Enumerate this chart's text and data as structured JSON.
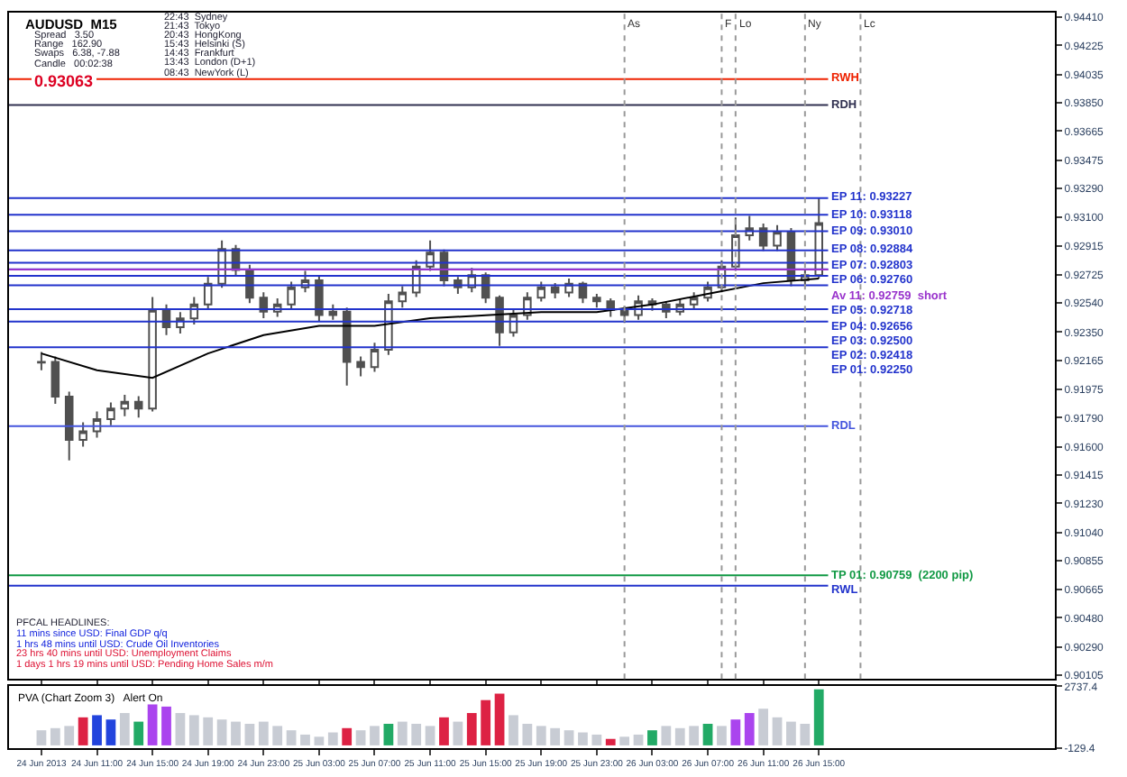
{
  "chart_data": [
    {
      "type": "candlestick",
      "title": "AUDUSD  M15",
      "color": "#505050",
      "x": [
        "2013-06-24T07:00",
        "2013-06-24T08:00",
        "2013-06-24T09:00",
        "2013-06-24T10:00",
        "2013-06-24T11:00",
        "2013-06-24T12:00",
        "2013-06-24T13:00",
        "2013-06-24T14:00",
        "2013-06-24T15:00",
        "2013-06-24T16:00",
        "2013-06-24T17:00",
        "2013-06-24T18:00",
        "2013-06-24T19:00",
        "2013-06-24T20:00",
        "2013-06-24T21:00",
        "2013-06-24T22:00",
        "2013-06-24T23:00",
        "2013-06-25T00:00",
        "2013-06-25T01:00",
        "2013-06-25T02:00",
        "2013-06-25T03:00",
        "2013-06-25T04:00",
        "2013-06-25T05:00",
        "2013-06-25T06:00",
        "2013-06-25T07:00",
        "2013-06-25T08:00",
        "2013-06-25T09:00",
        "2013-06-25T10:00",
        "2013-06-25T11:00",
        "2013-06-25T12:00",
        "2013-06-25T13:00",
        "2013-06-25T14:00",
        "2013-06-25T15:00",
        "2013-06-25T16:00",
        "2013-06-25T17:00",
        "2013-06-25T18:00",
        "2013-06-25T19:00",
        "2013-06-25T20:00",
        "2013-06-25T21:00",
        "2013-06-25T22:00",
        "2013-06-25T23:00",
        "2013-06-26T00:00",
        "2013-06-26T01:00",
        "2013-06-26T02:00",
        "2013-06-26T03:00",
        "2013-06-26T04:00",
        "2013-06-26T05:00",
        "2013-06-26T06:00",
        "2013-06-26T07:00",
        "2013-06-26T08:00",
        "2013-06-26T09:00",
        "2013-06-26T10:00",
        "2013-06-26T11:00",
        "2013-06-26T12:00",
        "2013-06-26T13:00",
        "2013-06-26T14:00",
        "2013-06-26T15:00"
      ],
      "ohlc": [
        [
          0.9215,
          0.9222,
          0.921,
          0.92155
        ],
        [
          0.92155,
          0.9219,
          0.9188,
          0.91928
        ],
        [
          0.91928,
          0.9196,
          0.9151,
          0.91644
        ],
        [
          0.91644,
          0.9176,
          0.916,
          0.91701
        ],
        [
          0.91701,
          0.9183,
          0.9166,
          0.9178
        ],
        [
          0.9178,
          0.9189,
          0.9174,
          0.91849
        ],
        [
          0.91849,
          0.9194,
          0.918,
          0.91894
        ],
        [
          0.91894,
          0.9193,
          0.9179,
          0.91849
        ],
        [
          0.91849,
          0.9258,
          0.9183,
          0.92496
        ],
        [
          0.92496,
          0.9253,
          0.9233,
          0.92382
        ],
        [
          0.92382,
          0.9248,
          0.9234,
          0.92439
        ],
        [
          0.92439,
          0.9258,
          0.924,
          0.9253
        ],
        [
          0.9253,
          0.9271,
          0.925,
          0.92666
        ],
        [
          0.92666,
          0.9295,
          0.9264,
          0.92893
        ],
        [
          0.92893,
          0.9292,
          0.9272,
          0.92757
        ],
        [
          0.92757,
          0.9279,
          0.9254,
          0.92575
        ],
        [
          0.92575,
          0.9261,
          0.9244,
          0.92484
        ],
        [
          0.92484,
          0.9257,
          0.9245,
          0.9253
        ],
        [
          0.9253,
          0.9268,
          0.925,
          0.92643
        ],
        [
          0.92643,
          0.9275,
          0.9261,
          0.92688
        ],
        [
          0.92688,
          0.9272,
          0.9242,
          0.92461
        ],
        [
          0.92461,
          0.9253,
          0.9243,
          0.92484
        ],
        [
          0.92484,
          0.9251,
          0.92,
          0.92155
        ],
        [
          0.92155,
          0.9219,
          0.9206,
          0.92121
        ],
        [
          0.92121,
          0.9228,
          0.9209,
          0.92234
        ],
        [
          0.92234,
          0.926,
          0.922,
          0.92552
        ],
        [
          0.92552,
          0.9265,
          0.9251,
          0.92609
        ],
        [
          0.92609,
          0.9282,
          0.9258,
          0.92779
        ],
        [
          0.92779,
          0.9295,
          0.9275,
          0.9287
        ],
        [
          0.9287,
          0.9289,
          0.9265,
          0.92688
        ],
        [
          0.92688,
          0.9271,
          0.926,
          0.92643
        ],
        [
          0.92643,
          0.9277,
          0.9261,
          0.92723
        ],
        [
          0.92723,
          0.9274,
          0.9254,
          0.92575
        ],
        [
          0.92575,
          0.9259,
          0.9226,
          0.92348
        ],
        [
          0.92348,
          0.925,
          0.9232,
          0.92461
        ],
        [
          0.92461,
          0.9261,
          0.9243,
          0.92575
        ],
        [
          0.92575,
          0.9268,
          0.9255,
          0.92643
        ],
        [
          0.92643,
          0.9267,
          0.9257,
          0.92609
        ],
        [
          0.92609,
          0.927,
          0.9258,
          0.92666
        ],
        [
          0.92666,
          0.9268,
          0.9254,
          0.92575
        ],
        [
          0.92575,
          0.926,
          0.9251,
          0.92552
        ],
        [
          0.92552,
          0.9257,
          0.9245,
          0.92496
        ],
        [
          0.92496,
          0.9252,
          0.9241,
          0.92461
        ],
        [
          0.92461,
          0.9259,
          0.9243,
          0.92552
        ],
        [
          0.92552,
          0.9257,
          0.9249,
          0.9253
        ],
        [
          0.9253,
          0.9255,
          0.9244,
          0.92484
        ],
        [
          0.92484,
          0.9257,
          0.9246,
          0.9253
        ],
        [
          0.9253,
          0.9261,
          0.925,
          0.92575
        ],
        [
          0.92575,
          0.9268,
          0.9255,
          0.92643
        ],
        [
          0.92643,
          0.9282,
          0.9261,
          0.92779
        ],
        [
          0.92779,
          0.931,
          0.9275,
          0.92984
        ],
        [
          0.92984,
          0.9311,
          0.9295,
          0.93029
        ],
        [
          0.93029,
          0.9306,
          0.9288,
          0.92916
        ],
        [
          0.92916,
          0.9305,
          0.9288,
          0.93006
        ],
        [
          0.93006,
          0.9303,
          0.9265,
          0.92688
        ],
        [
          0.92688,
          0.9276,
          0.9265,
          0.92723
        ],
        [
          0.92723,
          0.93227,
          0.927,
          0.93063
        ]
      ],
      "series": [
        {
          "type": "line",
          "color": "#000000",
          "x": [
            "2013-06-24T07:00",
            "2013-06-24T11:00",
            "2013-06-24T15:00",
            "2013-06-24T19:00",
            "2013-06-24T23:00",
            "2013-06-25T03:00",
            "2013-06-25T07:00",
            "2013-06-25T11:00",
            "2013-06-25T15:00",
            "2013-06-25T19:00",
            "2013-06-25T23:00",
            "2013-06-26T03:00",
            "2013-06-26T07:00",
            "2013-06-26T11:00",
            "2013-06-26T15:00"
          ],
          "values": [
            0.9221,
            0.921,
            0.9205,
            0.9221,
            0.9233,
            0.9239,
            0.9239,
            0.9244,
            0.9246,
            0.9248,
            0.9248,
            0.9253,
            0.926,
            0.9267,
            0.927
          ]
        }
      ],
      "xlim": [
        "2013-06-24T04:40",
        "2013-06-27T08:00"
      ],
      "xticks": [
        {
          "value": "2013-06-24T07:00",
          "label": null
        },
        {
          "value": "2013-06-24T11:00",
          "label": null
        },
        {
          "value": "2013-06-24T15:00",
          "label": null
        },
        {
          "value": "2013-06-24T19:00",
          "label": null
        },
        {
          "value": "2013-06-24T23:00",
          "label": null
        },
        {
          "value": "2013-06-25T03:00",
          "label": null
        },
        {
          "value": "2013-06-25T07:00",
          "label": null
        },
        {
          "value": "2013-06-25T11:00",
          "label": null
        },
        {
          "value": "2013-06-25T15:00",
          "label": null
        },
        {
          "value": "2013-06-25T19:00",
          "label": null
        },
        {
          "value": "2013-06-25T23:00",
          "label": null
        },
        {
          "value": "2013-06-26T03:00",
          "label": null
        },
        {
          "value": "2013-06-26T07:00",
          "label": null
        },
        {
          "value": "2013-06-26T11:00",
          "label": null
        },
        {
          "value": "2013-06-26T15:00",
          "label": null
        }
      ],
      "ylim": [
        0.9008,
        0.9444
      ],
      "yticks": [
        {
          "value": 0.90105,
          "label": "0.90105"
        },
        {
          "value": 0.9029,
          "label": "0.90290"
        },
        {
          "value": 0.9048,
          "label": "0.90480"
        },
        {
          "value": 0.90665,
          "label": "0.90665"
        },
        {
          "value": 0.90855,
          "label": "0.90855"
        },
        {
          "value": 0.9104,
          "label": "0.91040"
        },
        {
          "value": 0.9123,
          "label": "0.91230"
        },
        {
          "value": 0.91415,
          "label": "0.91415"
        },
        {
          "value": 0.916,
          "label": "0.91600"
        },
        {
          "value": 0.9179,
          "label": "0.91790"
        },
        {
          "value": 0.91975,
          "label": "0.91975"
        },
        {
          "value": 0.92165,
          "label": "0.92165"
        },
        {
          "value": 0.9235,
          "label": "0.92350"
        },
        {
          "value": 0.9254,
          "label": "0.92540"
        },
        {
          "value": 0.92725,
          "label": "0.92725"
        },
        {
          "value": 0.92915,
          "label": "0.92915"
        },
        {
          "value": 0.931,
          "label": "0.93100"
        },
        {
          "value": 0.9329,
          "label": "0.93290"
        },
        {
          "value": 0.93475,
          "label": "0.93475"
        },
        {
          "value": 0.93665,
          "label": "0.93665"
        },
        {
          "value": 0.9385,
          "label": "0.93850"
        },
        {
          "value": 0.94035,
          "label": "0.94035"
        },
        {
          "value": 0.94225,
          "label": "0.94225"
        },
        {
          "value": 0.9441,
          "label": "0.94410"
        }
      ],
      "tick_labels": "y",
      "ref_lines": [
        {
          "axis": "y",
          "value": 0.93227,
          "label": "EP 11: 0.93227",
          "color": "#2233cc"
        },
        {
          "axis": "y",
          "value": 0.93118,
          "label": "EP 10: 0.93118",
          "color": "#2233cc"
        },
        {
          "axis": "y",
          "value": 0.9301,
          "label": "EP 09: 0.93010",
          "color": "#2233cc"
        },
        {
          "axis": "y",
          "value": 0.92884,
          "label": "EP 08: 0.92884",
          "color": "#2233cc"
        },
        {
          "axis": "y",
          "value": 0.92803,
          "label": "EP 07: 0.92803",
          "color": "#2233cc"
        },
        {
          "axis": "y",
          "value": 0.9276,
          "label": "EP 06: 0.92760",
          "color": "#2233cc"
        },
        {
          "axis": "y",
          "value": 0.92718,
          "label": "EP 05: 0.92718",
          "color": "#2233cc"
        },
        {
          "axis": "y",
          "value": 0.92656,
          "label": "EP 04: 0.92656",
          "color": "#2233cc"
        },
        {
          "axis": "y",
          "value": 0.925,
          "label": "EP 03: 0.92500",
          "color": "#2233cc"
        },
        {
          "axis": "y",
          "value": 0.92418,
          "label": "EP 02: 0.92418",
          "color": "#2233cc"
        },
        {
          "axis": "y",
          "value": 0.9225,
          "label": "EP 01: 0.92250",
          "color": "#2233cc"
        },
        {
          "axis": "y",
          "value": 0.92759,
          "label": "Av 11: 0.92759  short",
          "color": "#9933cc"
        },
        {
          "axis": "y",
          "value": 0.94005,
          "label": "RWH",
          "color": "#ee2200"
        },
        {
          "axis": "y",
          "value": 0.93835,
          "label": "RDH",
          "color": "#303050"
        },
        {
          "axis": "y",
          "value": 0.91735,
          "label": "RDL",
          "color": "#4455dd"
        },
        {
          "axis": "y",
          "value": 0.9069,
          "label": "RWL",
          "color": "#2233cc"
        },
        {
          "axis": "y",
          "value": 0.90759,
          "label": "TP 01: 0.90759  (2200 pip)",
          "color": "#119944"
        },
        {
          "axis": "x",
          "value": "2013-06-26T01:00",
          "label": "As",
          "color": "#999999",
          "line_style": "dotted"
        },
        {
          "axis": "x",
          "value": "2013-06-26T08:00",
          "label": "F",
          "color": "#999999",
          "line_style": "dotted"
        },
        {
          "axis": "x",
          "value": "2013-06-26T09:00",
          "label": "Lo",
          "color": "#999999",
          "line_style": "dotted"
        },
        {
          "axis": "x",
          "value": "2013-06-26T14:00",
          "label": "Ny",
          "color": "#999999",
          "line_style": "dotted"
        },
        {
          "axis": "x",
          "value": "2013-06-26T18:00",
          "label": "Lc",
          "color": "#999999",
          "line_style": "dotted"
        }
      ],
      "annotations": [
        "Spread   3.50",
        "Range   162.90",
        "Swaps   6.38, -7.88",
        "Candle   00:02:38",
        "0.93063",
        "22:43  Sydney",
        "21:43  Tokyo",
        "20:43  HongKong",
        "15:43  Helsinki (S)",
        "14:43  Frankfurt",
        "13:43  London (D+1)",
        "08:43  NewYork (L)",
        "PFCAL HEADLINES:",
        "11 mins since USD: Final GDP q/q",
        "1 hrs 48 mins until USD: Crude Oil Inventories",
        "23 hrs 40 mins until USD: Unemployment Claims",
        "1 days 1 hrs 19 mins until USD: Pending Home Sales m/m"
      ]
    },
    {
      "type": "bar",
      "title": "PVA (Chart Zoom 3)   Alert On",
      "x": [
        "2013-06-24T07:00",
        "2013-06-24T08:00",
        "2013-06-24T09:00",
        "2013-06-24T10:00",
        "2013-06-24T11:00",
        "2013-06-24T12:00",
        "2013-06-24T13:00",
        "2013-06-24T14:00",
        "2013-06-24T15:00",
        "2013-06-24T16:00",
        "2013-06-24T17:00",
        "2013-06-24T18:00",
        "2013-06-24T19:00",
        "2013-06-24T20:00",
        "2013-06-24T21:00",
        "2013-06-24T22:00",
        "2013-06-24T23:00",
        "2013-06-25T00:00",
        "2013-06-25T01:00",
        "2013-06-25T02:00",
        "2013-06-25T03:00",
        "2013-06-25T04:00",
        "2013-06-25T05:00",
        "2013-06-25T06:00",
        "2013-06-25T07:00",
        "2013-06-25T08:00",
        "2013-06-25T09:00",
        "2013-06-25T10:00",
        "2013-06-25T11:00",
        "2013-06-25T12:00",
        "2013-06-25T13:00",
        "2013-06-25T14:00",
        "2013-06-25T15:00",
        "2013-06-25T16:00",
        "2013-06-25T17:00",
        "2013-06-25T18:00",
        "2013-06-25T19:00",
        "2013-06-25T20:00",
        "2013-06-25T21:00",
        "2013-06-25T22:00",
        "2013-06-25T23:00",
        "2013-06-26T00:00",
        "2013-06-26T01:00",
        "2013-06-26T02:00",
        "2013-06-26T03:00",
        "2013-06-26T04:00",
        "2013-06-26T05:00",
        "2013-06-26T06:00",
        "2013-06-26T07:00",
        "2013-06-26T08:00",
        "2013-06-26T09:00",
        "2013-06-26T10:00",
        "2013-06-26T11:00",
        "2013-06-26T12:00",
        "2013-06-26T13:00",
        "2013-06-26T14:00",
        "2013-06-26T15:00"
      ],
      "values": [
        700,
        800,
        900,
        1300,
        1400,
        1200,
        1500,
        1100,
        1900,
        1800,
        1500,
        1400,
        1300,
        1200,
        1100,
        1000,
        1100,
        900,
        700,
        500,
        400,
        600,
        800,
        700,
        900,
        1000,
        1100,
        1000,
        900,
        1300,
        1100,
        1500,
        2100,
        2400,
        1400,
        1000,
        900,
        800,
        700,
        600,
        500,
        300,
        400,
        500,
        700,
        900,
        800,
        900,
        1000,
        900,
        1200,
        1500,
        1700,
        1300,
        1100,
        1000,
        2600
      ],
      "colors": [
        "#c8ccd4",
        "#c8ccd4",
        "#c8ccd4",
        "#dd2244",
        "#2244dd",
        "#2244dd",
        "#c8ccd4",
        "#22aa66",
        "#aa44ee",
        "#aa44ee",
        "#c8ccd4",
        "#c8ccd4",
        "#c8ccd4",
        "#c8ccd4",
        "#c8ccd4",
        "#c8ccd4",
        "#c8ccd4",
        "#c8ccd4",
        "#c8ccd4",
        "#c8ccd4",
        "#c8ccd4",
        "#c8ccd4",
        "#dd2244",
        "#c8ccd4",
        "#c8ccd4",
        "#22aa66",
        "#c8ccd4",
        "#c8ccd4",
        "#c8ccd4",
        "#dd2244",
        "#c8ccd4",
        "#dd2244",
        "#dd2244",
        "#dd2244",
        "#c8ccd4",
        "#c8ccd4",
        "#c8ccd4",
        "#c8ccd4",
        "#c8ccd4",
        "#c8ccd4",
        "#c8ccd4",
        "#dd2244",
        "#c8ccd4",
        "#c8ccd4",
        "#22aa66",
        "#c8ccd4",
        "#c8ccd4",
        "#c8ccd4",
        "#22aa66",
        "#c8ccd4",
        "#aa44ee",
        "#aa44ee",
        "#c8ccd4",
        "#c8ccd4",
        "#c8ccd4",
        "#c8ccd4",
        "#22aa66"
      ],
      "xlim": [
        "2013-06-24T04:40",
        "2013-06-27T08:00"
      ],
      "xticks": [
        {
          "value": "2013-06-24T07:00",
          "label": "24 Jun 2013"
        },
        {
          "value": "2013-06-24T11:00",
          "label": "24 Jun 11:00"
        },
        {
          "value": "2013-06-24T15:00",
          "label": "24 Jun 15:00"
        },
        {
          "value": "2013-06-24T19:00",
          "label": "24 Jun 19:00"
        },
        {
          "value": "2013-06-24T23:00",
          "label": "24 Jun 23:00"
        },
        {
          "value": "2013-06-25T03:00",
          "label": "25 Jun 03:00"
        },
        {
          "value": "2013-06-25T07:00",
          "label": "25 Jun 07:00"
        },
        {
          "value": "2013-06-25T11:00",
          "label": "25 Jun 11:00"
        },
        {
          "value": "2013-06-25T15:00",
          "label": "25 Jun 15:00"
        },
        {
          "value": "2013-06-25T19:00",
          "label": "25 Jun 19:00"
        },
        {
          "value": "2013-06-25T23:00",
          "label": "25 Jun 23:00"
        },
        {
          "value": "2013-06-26T03:00",
          "label": "26 Jun 03:00"
        },
        {
          "value": "2013-06-26T07:00",
          "label": "26 Jun 07:00"
        },
        {
          "value": "2013-06-26T11:00",
          "label": "26 Jun 11:00"
        },
        {
          "value": "2013-06-26T15:00",
          "label": "26 Jun 15:00"
        }
      ],
      "ylim": [
        -129.4,
        2737.4
      ],
      "yticks": [
        -129.4,
        2737.4
      ]
    }
  ]
}
